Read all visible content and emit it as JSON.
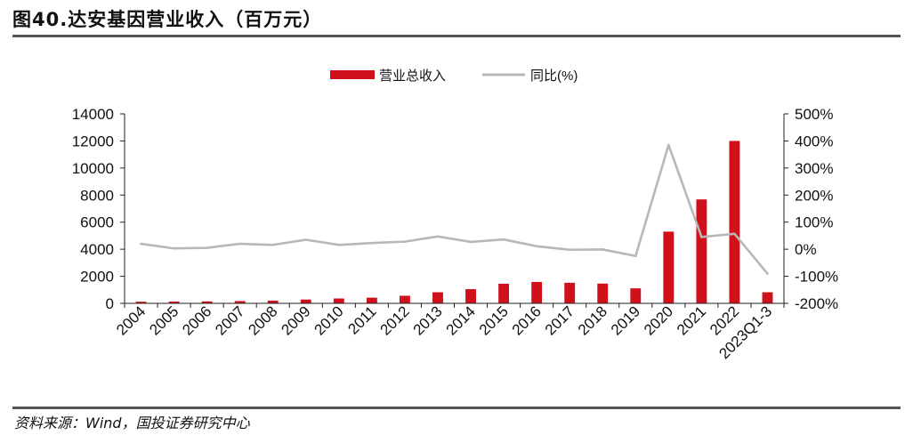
{
  "title": "图40.达安基因营业收入（百万元）",
  "source": "资料来源：Wind，国投证券研究中心",
  "chart_data": {
    "type": "bar+line",
    "categories": [
      "2004",
      "2005",
      "2006",
      "2007",
      "2008",
      "2009",
      "2010",
      "2011",
      "2012",
      "2013",
      "2014",
      "2015",
      "2016",
      "2017",
      "2018",
      "2019",
      "2020",
      "2021",
      "2022",
      "2023Q1-3"
    ],
    "series": [
      {
        "name": "营业总收入",
        "type": "bar",
        "axis": "left",
        "color": "#d0111b",
        "values": [
          120,
          135,
          145,
          170,
          200,
          280,
          360,
          420,
          560,
          820,
          1050,
          1450,
          1580,
          1520,
          1460,
          1110,
          5300,
          7680,
          12000,
          820
        ]
      },
      {
        "name": "同比(%)",
        "type": "line",
        "axis": "right",
        "color": "#b7b7b7",
        "values": [
          20,
          3,
          5,
          20,
          16,
          35,
          16,
          23,
          28,
          47,
          27,
          36,
          11,
          -2,
          -1,
          -25,
          385,
          45,
          57,
          -90
        ]
      }
    ],
    "left_axis": {
      "ylim": [
        0,
        14000
      ],
      "ticks": [
        "0",
        "2000",
        "4000",
        "6000",
        "8000",
        "10000",
        "12000",
        "14000"
      ]
    },
    "right_axis": {
      "ylim": [
        -200,
        500
      ],
      "ticks": [
        "-200%",
        "-100%",
        "0%",
        "100%",
        "200%",
        "300%",
        "400%",
        "500%"
      ]
    },
    "legend": "top-center"
  }
}
